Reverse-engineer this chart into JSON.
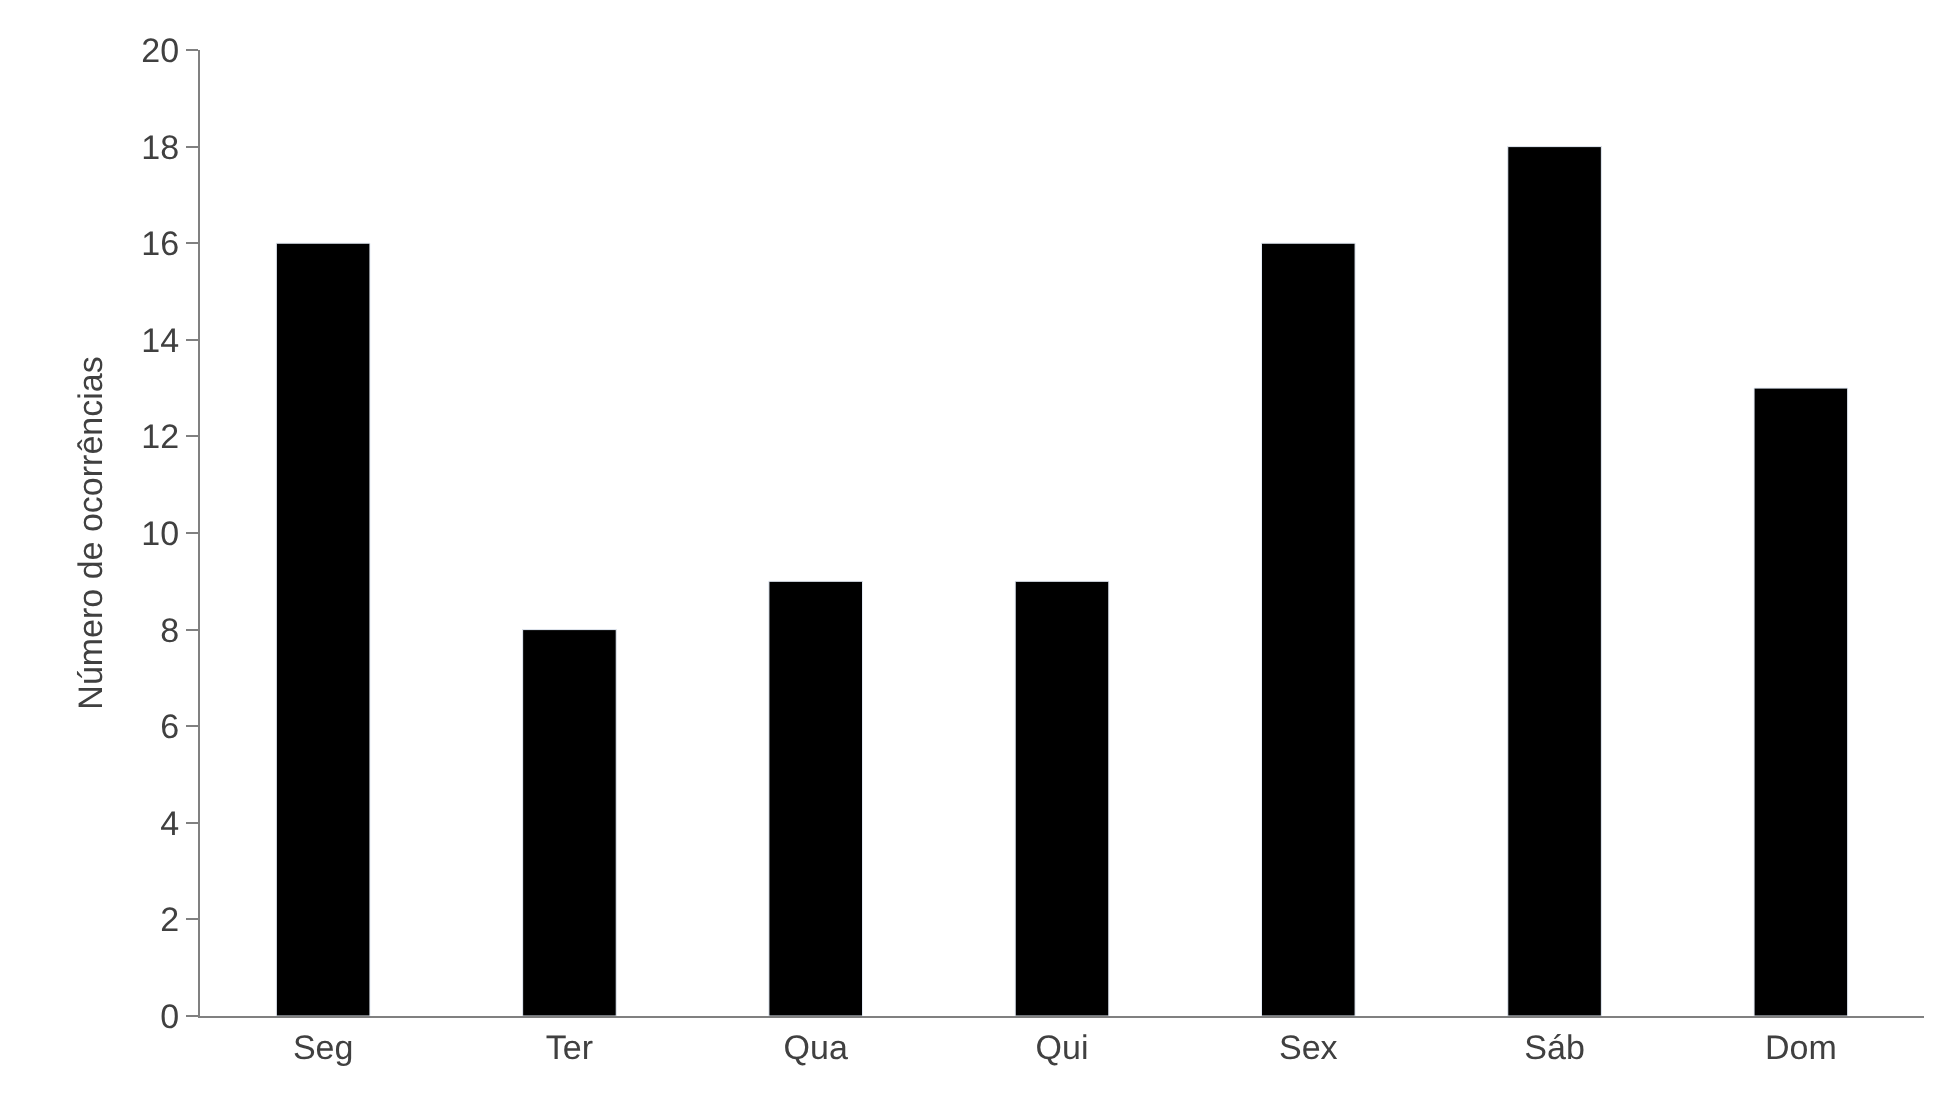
{
  "chart_data": {
    "type": "bar",
    "ylabel": "Número de ocorrências",
    "categories": [
      "Seg",
      "Ter",
      "Qua",
      "Qui",
      "Sex",
      "Sáb",
      "Dom"
    ],
    "values": [
      16,
      8,
      9,
      9,
      16,
      18,
      13
    ],
    "color": "#000000",
    "ylim": [
      0,
      20
    ],
    "yticks": [
      0,
      2,
      4,
      6,
      8,
      10,
      12,
      14,
      16,
      18,
      20
    ]
  }
}
